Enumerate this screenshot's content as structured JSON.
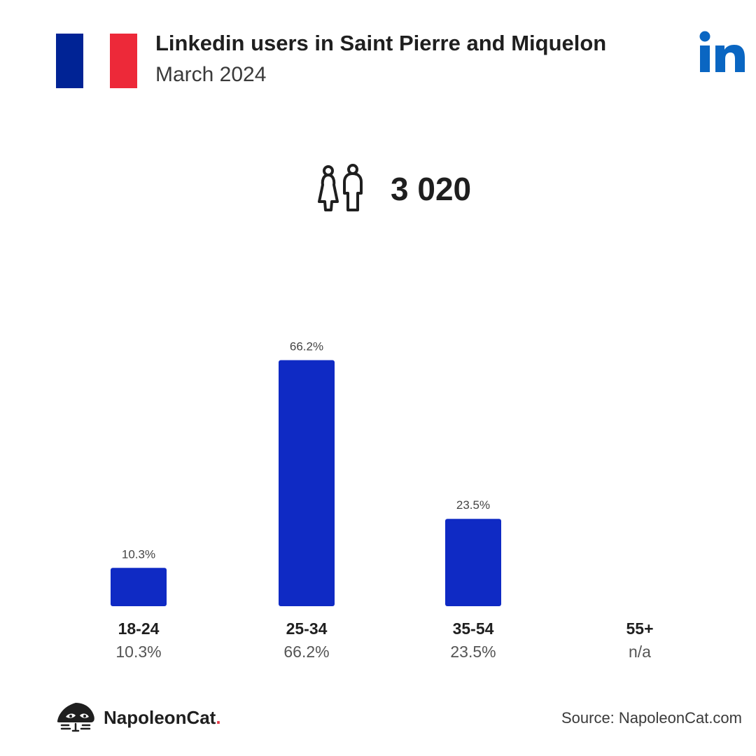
{
  "header": {
    "title": "Linkedin users in Saint Pierre and Miquelon",
    "subtitle": "March 2024",
    "flag_colors": [
      "#002395",
      "#ffffff",
      "#ed2939"
    ],
    "flag_icon": "france-flag-icon",
    "platform_icon": "linkedin-logo-icon",
    "platform_color": "#0a66c2"
  },
  "summary": {
    "total_users": "3 020",
    "icon": "people-icon"
  },
  "chart_data": {
    "type": "bar",
    "categories": [
      "18-24",
      "25-34",
      "35-54",
      "55+"
    ],
    "values": [
      10.3,
      66.2,
      23.5,
      null
    ],
    "value_labels": [
      "10.3%",
      "66.2%",
      "23.5%",
      ""
    ],
    "category_sublabels": [
      "10.3%",
      "66.2%",
      "23.5%",
      "n/a"
    ],
    "bar_color": "#0f2ac4",
    "grid": false,
    "legend": "none"
  },
  "footer": {
    "brand_name": "NapoleonCat",
    "brand_dot": ".",
    "brand_icon": "napoleoncat-logo-icon",
    "source": "Source: NapoleonCat.com"
  }
}
